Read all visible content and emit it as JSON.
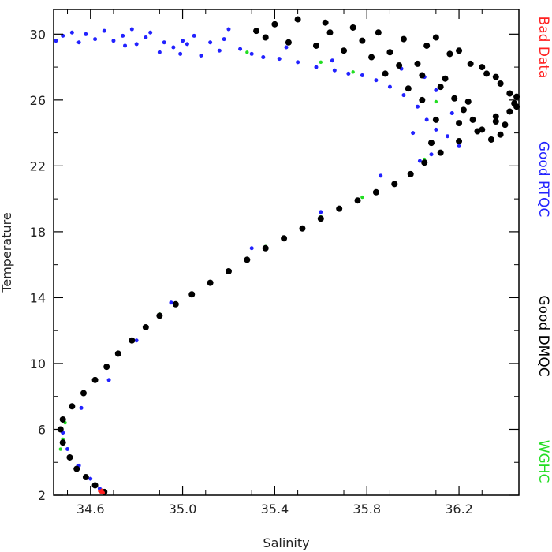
{
  "chart_data": {
    "type": "scatter",
    "xlabel": "Salinity",
    "ylabel": "Temperature",
    "xlim": [
      34.44,
      36.46
    ],
    "ylim": [
      2,
      31.5
    ],
    "xticks": [
      34.6,
      35.0,
      35.4,
      35.8,
      36.2
    ],
    "xtick_labels": [
      "34.6",
      "35.0",
      "35.4",
      "35.8",
      "36.2"
    ],
    "yticks": [
      2,
      6,
      10,
      14,
      18,
      22,
      26,
      30
    ],
    "ytick_labels": [
      "2",
      "6",
      "10",
      "14",
      "18",
      "22",
      "26",
      "30"
    ],
    "grid": false,
    "legend_position": "right",
    "series": [
      {
        "name": "Bad Data",
        "color": "#ff2020",
        "points": [
          [
            34.645,
            2.2
          ],
          [
            34.655,
            2.15
          ],
          [
            34.65,
            2.3
          ],
          [
            34.64,
            2.25
          ]
        ]
      },
      {
        "name": "Good RTQC",
        "color": "#2222ff",
        "points": [
          [
            34.45,
            29.6
          ],
          [
            34.48,
            29.9
          ],
          [
            34.52,
            30.1
          ],
          [
            34.55,
            29.5
          ],
          [
            34.58,
            30.0
          ],
          [
            34.62,
            29.7
          ],
          [
            34.66,
            30.2
          ],
          [
            34.7,
            29.6
          ],
          [
            34.74,
            29.9
          ],
          [
            34.78,
            30.3
          ],
          [
            34.8,
            29.4
          ],
          [
            34.84,
            29.8
          ],
          [
            34.86,
            30.1
          ],
          [
            34.9,
            28.9
          ],
          [
            34.92,
            29.5
          ],
          [
            34.96,
            29.2
          ],
          [
            34.99,
            28.8
          ],
          [
            35.02,
            29.4
          ],
          [
            35.05,
            29.9
          ],
          [
            35.08,
            28.7
          ],
          [
            35.12,
            29.5
          ],
          [
            35.16,
            29.0
          ],
          [
            35.2,
            30.3
          ],
          [
            35.25,
            29.1
          ],
          [
            35.3,
            28.8
          ],
          [
            35.35,
            28.6
          ],
          [
            35.42,
            28.5
          ],
          [
            35.5,
            28.3
          ],
          [
            35.58,
            28.0
          ],
          [
            35.66,
            27.8
          ],
          [
            35.72,
            27.6
          ],
          [
            35.78,
            27.5
          ],
          [
            35.84,
            27.2
          ],
          [
            35.9,
            26.8
          ],
          [
            35.96,
            26.3
          ],
          [
            36.02,
            25.6
          ],
          [
            36.06,
            24.8
          ],
          [
            36.1,
            24.2
          ],
          [
            36.15,
            23.8
          ],
          [
            36.2,
            23.2
          ],
          [
            36.03,
            22.3
          ],
          [
            35.86,
            21.4
          ],
          [
            35.6,
            19.2
          ],
          [
            35.3,
            17.0
          ],
          [
            34.95,
            13.7
          ],
          [
            34.8,
            11.4
          ],
          [
            34.68,
            9.0
          ],
          [
            34.56,
            7.3
          ],
          [
            34.48,
            5.8
          ],
          [
            34.5,
            4.8
          ],
          [
            34.55,
            3.8
          ],
          [
            34.6,
            3.0
          ],
          [
            34.64,
            2.4
          ],
          [
            35.0,
            29.6
          ],
          [
            34.75,
            29.3
          ],
          [
            35.18,
            29.7
          ],
          [
            35.45,
            29.2
          ],
          [
            35.65,
            28.4
          ],
          [
            36.05,
            27.4
          ],
          [
            35.95,
            27.9
          ],
          [
            36.1,
            26.6
          ],
          [
            36.17,
            25.2
          ],
          [
            36.0,
            24.0
          ],
          [
            36.08,
            22.7
          ]
        ]
      },
      {
        "name": "Good DMQC",
        "color": "#000000",
        "points": [
          [
            34.66,
            2.2
          ],
          [
            34.62,
            2.6
          ],
          [
            34.58,
            3.1
          ],
          [
            34.54,
            3.6
          ],
          [
            34.51,
            4.3
          ],
          [
            34.48,
            5.2
          ],
          [
            34.47,
            6.0
          ],
          [
            34.48,
            6.6
          ],
          [
            34.52,
            7.4
          ],
          [
            34.57,
            8.2
          ],
          [
            34.62,
            9.0
          ],
          [
            34.67,
            9.8
          ],
          [
            34.72,
            10.6
          ],
          [
            34.78,
            11.4
          ],
          [
            34.84,
            12.2
          ],
          [
            34.9,
            12.9
          ],
          [
            34.97,
            13.6
          ],
          [
            35.04,
            14.2
          ],
          [
            35.12,
            14.9
          ],
          [
            35.2,
            15.6
          ],
          [
            35.28,
            16.3
          ],
          [
            35.36,
            17.0
          ],
          [
            35.44,
            17.6
          ],
          [
            35.52,
            18.2
          ],
          [
            35.6,
            18.8
          ],
          [
            35.68,
            19.4
          ],
          [
            35.76,
            19.9
          ],
          [
            35.84,
            20.4
          ],
          [
            35.92,
            20.9
          ],
          [
            35.99,
            21.5
          ],
          [
            36.05,
            22.2
          ],
          [
            36.12,
            22.8
          ],
          [
            36.2,
            23.5
          ],
          [
            36.28,
            24.1
          ],
          [
            36.36,
            24.7
          ],
          [
            36.42,
            25.3
          ],
          [
            36.44,
            25.8
          ],
          [
            36.42,
            26.4
          ],
          [
            36.38,
            27.0
          ],
          [
            36.32,
            27.6
          ],
          [
            36.25,
            28.2
          ],
          [
            36.16,
            28.8
          ],
          [
            36.06,
            29.3
          ],
          [
            35.96,
            29.7
          ],
          [
            35.85,
            30.1
          ],
          [
            35.74,
            30.4
          ],
          [
            35.62,
            30.7
          ],
          [
            35.5,
            30.9
          ],
          [
            35.4,
            30.6
          ],
          [
            35.32,
            30.2
          ],
          [
            35.36,
            29.8
          ],
          [
            35.46,
            29.5
          ],
          [
            35.58,
            29.3
          ],
          [
            35.7,
            29.0
          ],
          [
            35.82,
            28.6
          ],
          [
            35.94,
            28.1
          ],
          [
            36.04,
            27.5
          ],
          [
            36.12,
            26.8
          ],
          [
            36.18,
            26.1
          ],
          [
            36.22,
            25.4
          ],
          [
            36.26,
            24.8
          ],
          [
            36.3,
            24.2
          ],
          [
            36.34,
            23.6
          ],
          [
            36.38,
            23.9
          ],
          [
            36.4,
            24.5
          ],
          [
            36.45,
            25.6
          ],
          [
            36.45,
            26.2
          ],
          [
            36.36,
            25.0
          ],
          [
            36.24,
            25.9
          ],
          [
            36.14,
            27.3
          ],
          [
            36.02,
            28.2
          ],
          [
            35.9,
            28.9
          ],
          [
            35.78,
            29.6
          ],
          [
            35.64,
            30.1
          ],
          [
            36.1,
            29.8
          ],
          [
            36.2,
            29.0
          ],
          [
            36.3,
            28.0
          ],
          [
            36.36,
            27.4
          ],
          [
            36.04,
            26.0
          ],
          [
            35.98,
            26.7
          ],
          [
            36.1,
            24.8
          ],
          [
            36.2,
            24.6
          ],
          [
            36.08,
            23.4
          ],
          [
            35.88,
            27.6
          ]
        ]
      },
      {
        "name": "WGHC",
        "color": "#22dd22",
        "points": [
          [
            34.47,
            4.8
          ],
          [
            34.48,
            5.4
          ],
          [
            34.49,
            6.4
          ],
          [
            35.28,
            28.9
          ],
          [
            35.6,
            28.3
          ],
          [
            35.74,
            27.7
          ],
          [
            36.1,
            25.9
          ],
          [
            36.05,
            22.4
          ],
          [
            35.78,
            20.1
          ],
          [
            35.6,
            18.9
          ],
          [
            35.36,
            17.1
          ],
          [
            34.9,
            13.0
          ]
        ]
      }
    ]
  }
}
